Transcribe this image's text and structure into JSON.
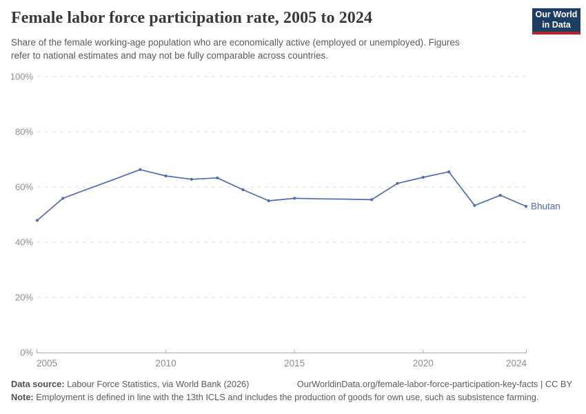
{
  "header": {
    "title": "Female labor force participation rate, 2005 to 2024",
    "subtitle_lines": [
      "Share of the female working-age population who are economically active (employed or unemployed). Figures",
      "refer to national estimates and may not be fully comparable across countries."
    ],
    "logo": {
      "line1": "Our World",
      "line2": "in Data"
    }
  },
  "colors": {
    "accent_line": "#4d6cb0",
    "grid": "#dcdcdc",
    "axis": "#a6a6a6",
    "tick": "#b3b3b3",
    "axis_text": "#8e8e8e",
    "logo_bg": "#1d3d63",
    "logo_stripe": "#b5232b"
  },
  "chart_data": {
    "type": "line",
    "title": "Female labor force participation rate, 2005 to 2024",
    "ylabel": "",
    "xlabel": "",
    "unit": "%",
    "ylim": [
      0,
      100
    ],
    "xlim": [
      2005,
      2024
    ],
    "grid": "horizontal-dashed",
    "legend_position": "end-of-line-label",
    "yticks": [
      0,
      20,
      40,
      60,
      80,
      100
    ],
    "ytick_labels": [
      "0%",
      "20%",
      "40%",
      "60%",
      "80%",
      "100%"
    ],
    "xticks": [
      2005,
      2010,
      2015,
      2020,
      2024
    ],
    "xtick_labels": [
      "2005",
      "2010",
      "2015",
      "2020",
      "2024"
    ],
    "series": [
      {
        "name": "Bhutan",
        "color": "#4d6cb0",
        "points": [
          {
            "year": 2005,
            "value": 47.9,
            "marker": true
          },
          {
            "year": 2006,
            "value": 55.9,
            "marker": true
          },
          {
            "year": 2007,
            "value": 59.4,
            "marker": false
          },
          {
            "year": 2008,
            "value": 62.8,
            "marker": false
          },
          {
            "year": 2009,
            "value": 66.3,
            "marker": true
          },
          {
            "year": 2010,
            "value": 64.0,
            "marker": true
          },
          {
            "year": 2011,
            "value": 62.8,
            "marker": true
          },
          {
            "year": 2012,
            "value": 63.3,
            "marker": true
          },
          {
            "year": 2013,
            "value": 59.0,
            "marker": true
          },
          {
            "year": 2014,
            "value": 55.0,
            "marker": true
          },
          {
            "year": 2015,
            "value": 55.9,
            "marker": true
          },
          {
            "year": 2016,
            "value": 55.7,
            "marker": false
          },
          {
            "year": 2017,
            "value": 55.6,
            "marker": false
          },
          {
            "year": 2018,
            "value": 55.4,
            "marker": true
          },
          {
            "year": 2019,
            "value": 61.3,
            "marker": true
          },
          {
            "year": 2020,
            "value": 63.5,
            "marker": true
          },
          {
            "year": 2021,
            "value": 65.5,
            "marker": true
          },
          {
            "year": 2022,
            "value": 53.3,
            "marker": true
          },
          {
            "year": 2023,
            "value": 57.0,
            "marker": true
          },
          {
            "year": 2024,
            "value": 53.0,
            "marker": true
          }
        ]
      }
    ]
  },
  "footer": {
    "data_source_label": "Data source:",
    "data_source_text": " Labour Force Statistics, via World Bank (2026)",
    "citation_text": "OurWorldinData.org/female-labor-force-participation-key-facts | CC BY",
    "note_label": "Note:",
    "note_text": " Employment is defined in line with the 13th ICLS and includes the production of goods for own use, such as subsistence farming."
  }
}
